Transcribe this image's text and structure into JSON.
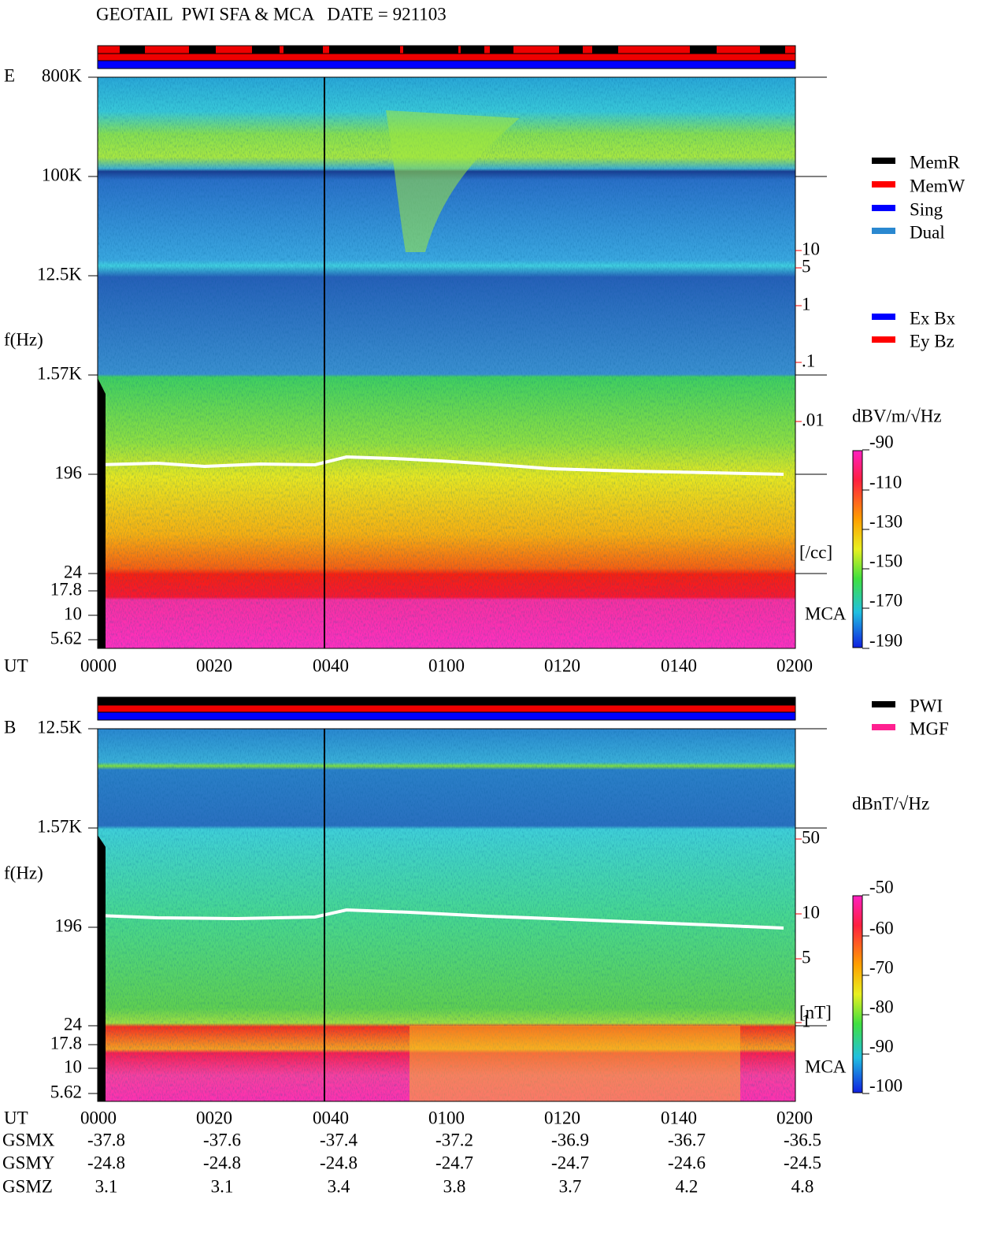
{
  "header": {
    "title": "GEOTAIL  PWI SFA & MCA   DATE = 921103"
  },
  "panels": [
    {
      "label": "E",
      "y_axis_label": "f(Hz)",
      "freq_ticks": [
        "800K",
        "100K",
        "12.5K",
        "1.57K",
        "196",
        "24",
        "17.8",
        "10",
        "5.62"
      ],
      "right_ticks": [
        "10",
        "5",
        "1",
        ".1",
        ".01"
      ],
      "right_unit": "[/cc]",
      "mca_label": "MCA",
      "x_axis_label": "UT",
      "time_ticks": [
        "0000",
        "0020",
        "0040",
        "0100",
        "0120",
        "0140",
        "0200"
      ],
      "colorbar": {
        "unit": "dBV/m/√Hz",
        "ticks": [
          "-90",
          "-110",
          "-130",
          "-150",
          "-170",
          "-190"
        ]
      }
    },
    {
      "label": "B",
      "y_axis_label": "f(Hz)",
      "freq_ticks": [
        "12.5K",
        "1.57K",
        "196",
        "24",
        "17.8",
        "10",
        "5.62"
      ],
      "right_ticks": [
        "50",
        "10",
        "5",
        "1"
      ],
      "right_unit": "[nT]",
      "mca_label": "MCA",
      "x_axis_label": "UT",
      "time_ticks": [
        "0000",
        "0020",
        "0040",
        "0100",
        "0120",
        "0140",
        "0200"
      ],
      "colorbar": {
        "unit": "dBnT/√Hz",
        "ticks": [
          "-50",
          "-60",
          "-70",
          "-80",
          "-90",
          "-100"
        ]
      }
    }
  ],
  "legend_status": [
    "MemR",
    "MemW",
    "Sing",
    "Dual"
  ],
  "legend_component": [
    "Ex Bx",
    "Ey Bz"
  ],
  "legend_source": [
    "PWI",
    "MGF"
  ],
  "orbit": [
    {
      "label": "GSMX",
      "values": [
        "-37.8",
        "-37.6",
        "-37.4",
        "-37.2",
        "-36.9",
        "-36.7",
        "-36.5"
      ]
    },
    {
      "label": "GSMY",
      "values": [
        "-24.8",
        "-24.8",
        "-24.8",
        "-24.7",
        "-24.7",
        "-24.6",
        "-24.5"
      ]
    },
    {
      "label": "GSMZ",
      "values": [
        "3.1",
        "3.1",
        "3.4",
        "3.8",
        "3.7",
        "4.2",
        "4.8"
      ]
    }
  ]
}
